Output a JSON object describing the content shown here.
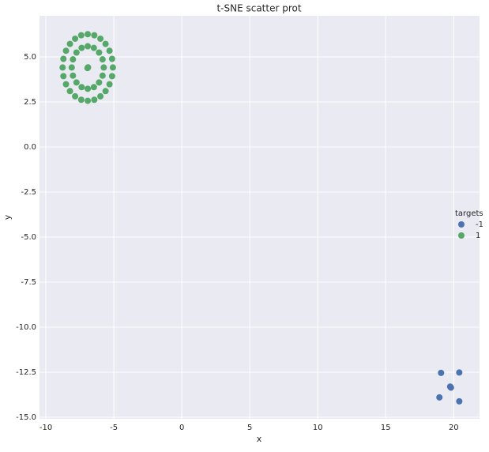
{
  "chart_data": {
    "type": "scatter",
    "title": "t-SNE scatter prot",
    "xlabel": "x",
    "ylabel": "y",
    "xlim": [
      -10.47,
      21.9
    ],
    "ylim": [
      -15.09,
      7.28
    ],
    "xticks": [
      -10,
      -5,
      0,
      5,
      10,
      15,
      20
    ],
    "yticks": [
      {
        "value": 5,
        "label": "5.0"
      },
      2.5,
      {
        "value": 0,
        "label": "0.0"
      },
      -2.5,
      {
        "value": -5,
        "label": "-5.0"
      },
      -7.5,
      {
        "value": -10,
        "label": "-10.0"
      },
      -12.5,
      {
        "value": -15,
        "label": "-15.0"
      }
    ],
    "grid": true,
    "legend_title": "targets",
    "legend_position": "right",
    "series": [
      {
        "name": "-1",
        "color": "#4c72b0",
        "x": [
          19.07,
          20.41,
          18.95,
          20.41,
          19.77,
          19.74,
          19.8
        ],
        "y": [
          -12.54,
          -12.52,
          -13.9,
          -14.12,
          -13.33,
          -13.3,
          -13.36
        ]
      },
      {
        "name": "1",
        "color": "#55a868",
        "x": [
          -5.07,
          -5.13,
          -5.32,
          -5.61,
          -5.99,
          -6.44,
          -6.92,
          -7.4,
          -7.85,
          -8.23,
          -8.52,
          -8.71,
          -8.77,
          -8.71,
          -8.52,
          -8.23,
          -7.85,
          -7.4,
          -6.92,
          -6.44,
          -5.99,
          -5.61,
          -5.32,
          -5.13,
          -5.74,
          -5.83,
          -6.09,
          -6.47,
          -6.92,
          -7.37,
          -7.75,
          -8.01,
          -8.1,
          -8.01,
          -7.75,
          -7.37,
          -6.92,
          -6.47,
          -6.09,
          -5.83,
          -6.92,
          -6.9,
          -6.94
        ],
        "y": [
          4.41,
          4.89,
          5.34,
          5.72,
          6.01,
          6.2,
          6.26,
          6.2,
          6.01,
          5.72,
          5.34,
          4.89,
          4.41,
          3.93,
          3.48,
          3.1,
          2.81,
          2.62,
          2.56,
          2.62,
          2.81,
          3.1,
          3.48,
          3.93,
          4.41,
          4.86,
          5.24,
          5.5,
          5.59,
          5.5,
          5.24,
          4.86,
          4.41,
          3.96,
          3.58,
          3.32,
          3.23,
          3.32,
          3.58,
          3.96,
          4.4,
          4.42,
          4.38
        ]
      }
    ]
  }
}
